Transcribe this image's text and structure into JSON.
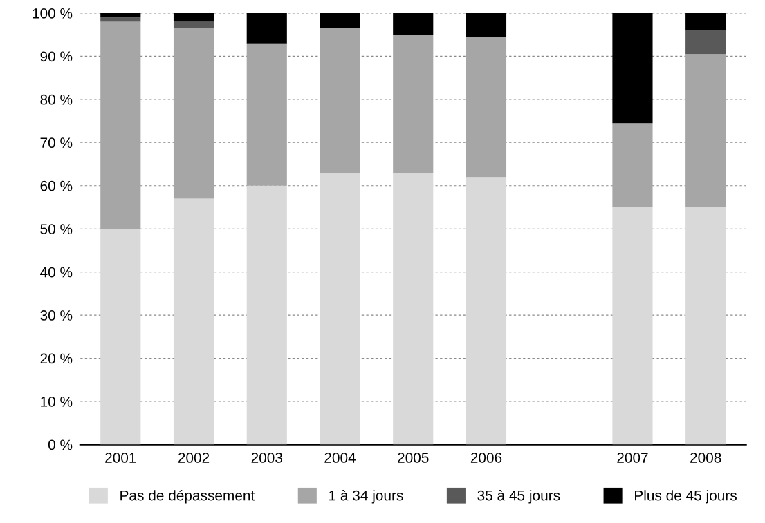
{
  "chart_data": {
    "type": "bar",
    "stacked": true,
    "categories": [
      "2001",
      "2002",
      "2003",
      "2004",
      "2005",
      "2006",
      null,
      "2007",
      "2008"
    ],
    "series": [
      {
        "name": "Pas de dépassement",
        "color": "#d9d9d9",
        "values": [
          50,
          57,
          60,
          63,
          63,
          62,
          null,
          55,
          55
        ]
      },
      {
        "name": "1 à 34 jours",
        "color": "#a6a6a6",
        "values": [
          48,
          39.5,
          33,
          33.5,
          32,
          32.5,
          null,
          19.5,
          35.5
        ]
      },
      {
        "name": "35 à 45 jours",
        "color": "#595959",
        "values": [
          1,
          1.5,
          0,
          0,
          0,
          0,
          null,
          0,
          5.5
        ]
      },
      {
        "name": "Plus de 45 jours",
        "color": "#000000",
        "values": [
          1,
          2,
          7,
          3.5,
          5,
          5.5,
          null,
          25.5,
          4
        ]
      }
    ],
    "ylim": [
      0,
      100
    ],
    "yticks": [
      {
        "value": 0,
        "label": "0 %"
      },
      {
        "value": 10,
        "label": "10 %"
      },
      {
        "value": 20,
        "label": "20 %"
      },
      {
        "value": 30,
        "label": "30 %"
      },
      {
        "value": 40,
        "label": "40 %"
      },
      {
        "value": 50,
        "label": "50 %"
      },
      {
        "value": 60,
        "label": "60 %"
      },
      {
        "value": 70,
        "label": "70 %"
      },
      {
        "value": 80,
        "label": "80 %"
      },
      {
        "value": 90,
        "label": "90 %"
      },
      {
        "value": 100,
        "label": "100 %"
      }
    ],
    "grid": "y",
    "legend": "bottom"
  }
}
